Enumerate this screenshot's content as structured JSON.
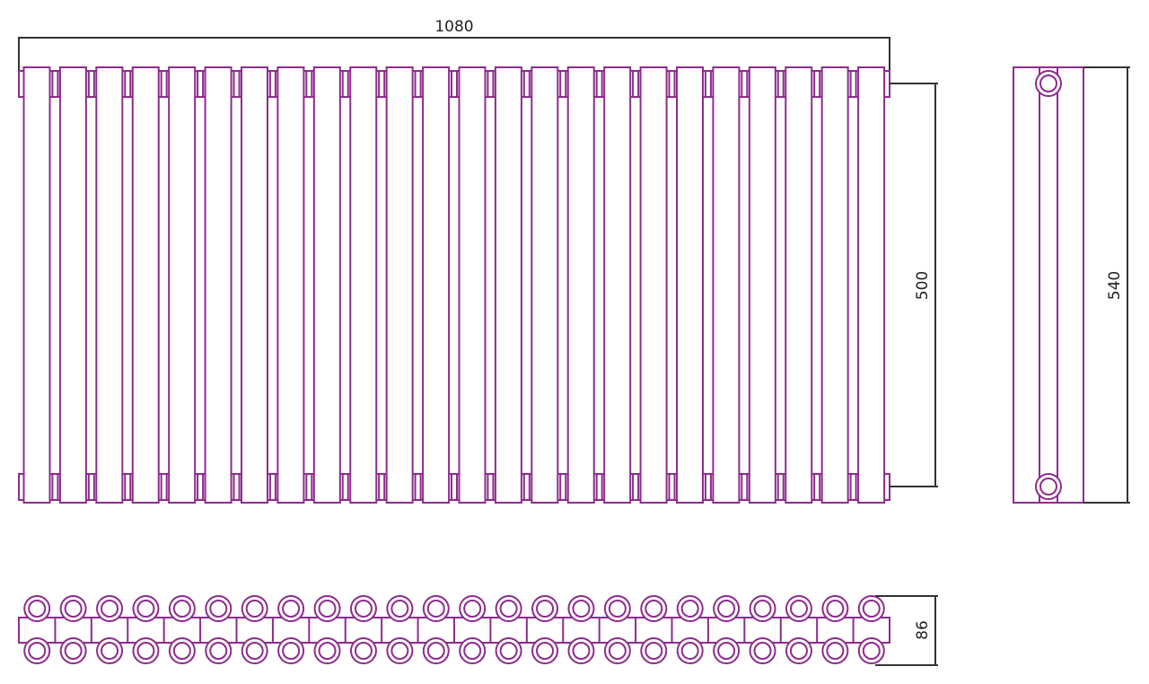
{
  "drawing": {
    "colors": {
      "outline": "#8e2b8e",
      "dimension": "#333333"
    },
    "section_count": 24,
    "dimensions": {
      "width": "1080",
      "axis_distance": "500",
      "height": "540",
      "depth": "86"
    }
  }
}
